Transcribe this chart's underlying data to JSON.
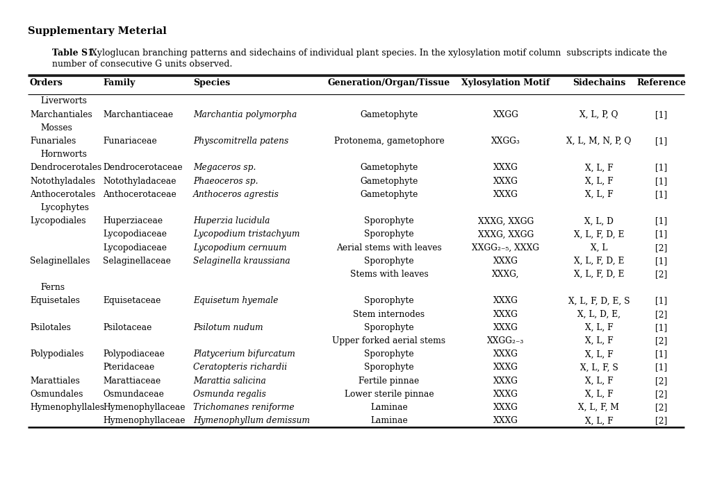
{
  "title": "Supplementary Meterial",
  "caption_bold": "Table S1.",
  "caption_rest": " Xyloglucan branching patterns and sidechains of individual plant species. In the xylosylation motif column  subscripts indicate the",
  "caption_line2": "number of consecutive G units observed.",
  "headers": [
    "Orders",
    "Family",
    "Species",
    "Generation/Organ/Tissue",
    "Xylosylation Motif",
    "Sidechains",
    "Reference"
  ],
  "rows": [
    {
      "order": "Liverworts",
      "family": "",
      "species": "",
      "generation": "",
      "motif": "",
      "sidechains": "",
      "ref": "",
      "group_header": true
    },
    {
      "order": "Marchantiales",
      "family": "Marchantiaceae",
      "species": "Marchantia polymorpha",
      "species_italic": true,
      "generation": "Gametophyte",
      "motif": "XXGG",
      "sidechains": "X, L, P, Q",
      "ref": "[1]"
    },
    {
      "order": "Mosses",
      "family": "",
      "species": "",
      "generation": "",
      "motif": "",
      "sidechains": "",
      "ref": "",
      "group_header": true
    },
    {
      "order": "Funariales",
      "family": "Funariaceae",
      "species": "Physcomitrella patens",
      "species_italic": true,
      "generation": "Protonema, gametophore",
      "motif": "XXGG₃",
      "sidechains": "X, L, M, N, P, Q",
      "ref": "[1]"
    },
    {
      "order": "Hornworts",
      "family": "",
      "species": "",
      "generation": "",
      "motif": "",
      "sidechains": "",
      "ref": "",
      "group_header": true
    },
    {
      "order": "Dendrocerotales",
      "family": "Dendrocerotaceae",
      "species": "Megaceros sp.",
      "species_italic": true,
      "generation": "Gametophyte",
      "motif": "XXXG",
      "sidechains": "X, L, F",
      "ref": "[1]"
    },
    {
      "order": "Notothyladales",
      "family": "Notothyladaceae",
      "species": "Phaeoceros sp.",
      "species_italic": true,
      "generation": "Gametophyte",
      "motif": "XXXG",
      "sidechains": "X, L, F",
      "ref": "[1]"
    },
    {
      "order": "Anthocerotales",
      "family": "Anthocerotaceae",
      "species": "Anthoceros agrestis",
      "species_italic": true,
      "generation": "Gametophyte",
      "motif": "XXXG",
      "sidechains": "X, L, F",
      "ref": "[1]"
    },
    {
      "order": "Lycophytes",
      "family": "",
      "species": "",
      "generation": "",
      "motif": "",
      "sidechains": "",
      "ref": "",
      "group_header": true
    },
    {
      "order": "Lycopodiales",
      "family": "Huperziaceae",
      "species": "Huperzia lucidula",
      "species_italic": true,
      "generation": "Sporophyte",
      "motif": "XXXG, XXGG",
      "sidechains": "X, L, D",
      "ref": "[1]"
    },
    {
      "order": "",
      "family": "Lycopodiaceae",
      "species": "Lycopodium tristachyum",
      "species_italic": true,
      "generation": "Sporophyte",
      "motif": "XXXG, XXGG",
      "sidechains": "X, L, F, D, E",
      "ref": "[1]"
    },
    {
      "order": "",
      "family": "Lycopodiaceae",
      "species": "Lycopodium cernuum",
      "species_italic": true,
      "generation": "Aerial stems with leaves",
      "motif": "XXGG₂₋₅, XXXG",
      "sidechains": "X, L",
      "ref": "[2]"
    },
    {
      "order": "Selaginellales",
      "family": "Selaginellaceae",
      "species": "Selaginella kraussiana",
      "species_italic": true,
      "generation": "Sporophyte",
      "motif": "XXXG",
      "sidechains": "X, L, F, D, E",
      "ref": "[1]"
    },
    {
      "order": "",
      "family": "",
      "species": "",
      "generation": "Stems with leaves",
      "motif": "XXXG,",
      "sidechains": "X, L, F, D, E",
      "ref": "[2]"
    },
    {
      "order": "Ferns",
      "family": "",
      "species": "",
      "generation": "",
      "motif": "",
      "sidechains": "",
      "ref": "",
      "group_header": true
    },
    {
      "order": "Equisetales",
      "family": "Equisetaceae",
      "species": "Equisetum hyemale",
      "species_italic": true,
      "generation": "Sporophyte",
      "motif": "XXXG",
      "sidechains": "X, L, F, D, E, S",
      "ref": "[1]"
    },
    {
      "order": "",
      "family": "",
      "species": "",
      "generation": "Stem internodes",
      "motif": "XXXG",
      "sidechains": "X, L, D, E,",
      "ref": "[2]"
    },
    {
      "order": "Psilotales",
      "family": "Psilotaceae",
      "species": "Psilotum nudum",
      "species_italic": true,
      "generation": "Sporophyte",
      "motif": "XXXG",
      "sidechains": "X, L, F",
      "ref": "[1]"
    },
    {
      "order": "",
      "family": "",
      "species": "",
      "generation": "Upper forked aerial stems",
      "motif": "XXGG₂₋₃",
      "sidechains": "X, L, F",
      "ref": "[2]"
    },
    {
      "order": "Polypodiales",
      "family": "Polypodiaceae",
      "species": "Platycerium bifurcatum",
      "species_italic": true,
      "generation": "Sporophyte",
      "motif": "XXXG",
      "sidechains": "X, L, F",
      "ref": "[1]"
    },
    {
      "order": "",
      "family": "Pteridaceae",
      "species": "Ceratopteris richardii",
      "species_italic": true,
      "generation": "Sporophyte",
      "motif": "XXXG",
      "sidechains": "X, L, F, S",
      "ref": "[1]"
    },
    {
      "order": "Marattiales",
      "family": "Marattiaceae",
      "species": "Marattia salicina",
      "species_italic": true,
      "generation": "Fertile pinnae",
      "motif": "XXXG",
      "sidechains": "X, L, F",
      "ref": "[2]"
    },
    {
      "order": "Osmundales",
      "family": "Osmundaceae",
      "species": "Osmunda regalis",
      "species_italic": true,
      "generation": "Lower sterile pinnae",
      "motif": "XXXG",
      "sidechains": "X, L, F",
      "ref": "[2]"
    },
    {
      "order": "Hymenophyllales",
      "family": "Hymenophyllaceae",
      "species": "Trichomanes reniforme",
      "species_italic": true,
      "generation": "Laminae",
      "motif": "XXXG",
      "sidechains": "X, L, F, M",
      "ref": "[2]"
    },
    {
      "order": "",
      "family": "Hymenophyllaceae",
      "species": "Hymenophyllum demissum",
      "species_italic": true,
      "generation": "Laminae",
      "motif": "XXXG",
      "sidechains": "X, L, F",
      "ref": "[2]"
    }
  ],
  "background_color": "#ffffff",
  "text_color": "#000000"
}
